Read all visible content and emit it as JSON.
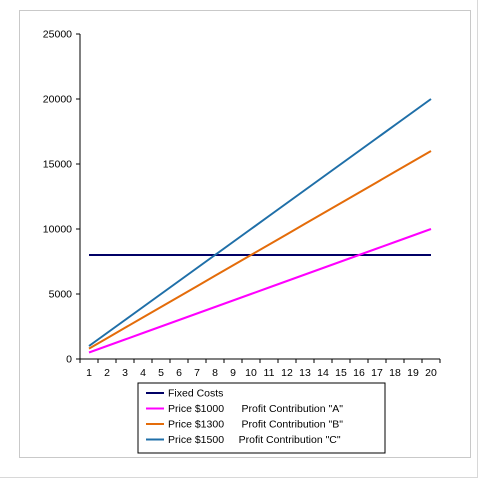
{
  "chart_data": {
    "type": "line",
    "x": [
      1,
      2,
      3,
      4,
      5,
      6,
      7,
      8,
      9,
      10,
      11,
      12,
      13,
      14,
      15,
      16,
      17,
      18,
      19,
      20
    ],
    "ylim": [
      0,
      25000
    ],
    "yticks": [
      0,
      5000,
      10000,
      15000,
      20000,
      25000
    ],
    "grid": false,
    "legend_position": "bottom",
    "series": [
      {
        "name": "Fixed Costs",
        "color": "#000066",
        "values": [
          8000,
          8000,
          8000,
          8000,
          8000,
          8000,
          8000,
          8000,
          8000,
          8000,
          8000,
          8000,
          8000,
          8000,
          8000,
          8000,
          8000,
          8000,
          8000,
          8000
        ]
      },
      {
        "name": "Price $1000      Profit Contribution \"A\"",
        "color": "#ff00ff",
        "values": [
          500,
          1000,
          1500,
          2000,
          2500,
          3000,
          3500,
          4000,
          4500,
          5000,
          5500,
          6000,
          6500,
          7000,
          7500,
          8000,
          8500,
          9000,
          9500,
          10000
        ]
      },
      {
        "name": "Price $1300      Profit Contribution \"B\"",
        "color": "#e46c0a",
        "values": [
          800,
          1600,
          2400,
          3200,
          4000,
          4800,
          5600,
          6400,
          7200,
          8000,
          8800,
          9600,
          10400,
          11200,
          12000,
          12800,
          13600,
          14400,
          15200,
          16000
        ]
      },
      {
        "name": "Price $1500     Profit Contribution \"C\"",
        "color": "#1f6fa8",
        "values": [
          1000,
          2000,
          3000,
          4000,
          5000,
          6000,
          7000,
          8000,
          9000,
          10000,
          11000,
          12000,
          13000,
          14000,
          15000,
          16000,
          17000,
          18000,
          19000,
          20000
        ]
      }
    ]
  }
}
